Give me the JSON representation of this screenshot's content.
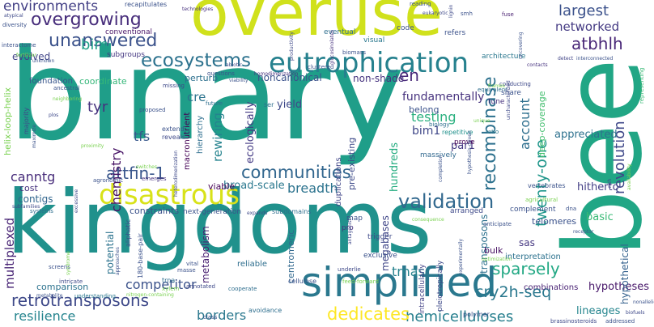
{
  "words": [
    {
      "text": "binary",
      "color": "#1f9e89"
    },
    {
      "text": "overuse",
      "color": "#d0e11c"
    },
    {
      "text": "kingdoms",
      "color": "#20918c"
    },
    {
      "text": "bee",
      "color": "#21a685"
    },
    {
      "text": "simplified",
      "color": "#2a788e"
    },
    {
      "text": "eutrophication",
      "color": "#26818e"
    },
    {
      "text": "disastrous",
      "color": "#d8e219"
    },
    {
      "text": "overgrowing",
      "color": "#472d7b"
    },
    {
      "text": "unanswered",
      "color": "#3b528b"
    },
    {
      "text": "ecosystems",
      "color": "#2c728e"
    },
    {
      "text": "communities",
      "color": "#31668e"
    },
    {
      "text": "validation",
      "color": "#31688e"
    },
    {
      "text": "retrotransposons",
      "color": "#3e4989"
    },
    {
      "text": "recombinase",
      "color": "#2d718e"
    },
    {
      "text": "largest",
      "color": "#3b518b"
    },
    {
      "text": "atbhlh",
      "color": "#482677"
    },
    {
      "text": "networked",
      "color": "#443a83"
    },
    {
      "text": "revolution",
      "color": "#3f4889"
    },
    {
      "text": "cry2h-seq",
      "color": "#2a788e"
    },
    {
      "text": "hemicelluloses",
      "color": "#277f8e"
    },
    {
      "text": "dedicates",
      "color": "#fde725"
    },
    {
      "text": "attfin-1",
      "color": "#39568c"
    },
    {
      "text": "account",
      "color": "#2e6f8e"
    },
    {
      "text": "twenty-one",
      "color": "#1f968b"
    },
    {
      "text": "sparsely",
      "color": "#22a884"
    },
    {
      "text": "environments",
      "color": "#423f85"
    },
    {
      "text": "chemistry",
      "color": "#471365"
    },
    {
      "text": "canntg",
      "color": "#472c7a"
    },
    {
      "text": "multiplexed",
      "color": "#482475"
    },
    {
      "text": "resilience",
      "color": "#25848e"
    },
    {
      "text": "competitor",
      "color": "#3b528b"
    },
    {
      "text": "borders",
      "color": "#2a788e"
    },
    {
      "text": "lineages",
      "color": "#25858e"
    },
    {
      "text": "hypotheses",
      "color": "#48186a"
    },
    {
      "text": "trnas",
      "color": "#26828e"
    },
    {
      "text": "hitherto",
      "color": "#433e85"
    },
    {
      "text": "hypothetical",
      "color": "#34618d"
    },
    {
      "text": "breadth",
      "color": "#2c738e"
    },
    {
      "text": "testing",
      "color": "#2ab07f"
    },
    {
      "text": "hundreds",
      "color": "#26ad81"
    },
    {
      "text": "par1",
      "color": "#443983"
    },
    {
      "text": "bim1",
      "color": "#3f4788"
    },
    {
      "text": "fundamentally",
      "color": "#46327e"
    },
    {
      "text": "appreciated",
      "color": "#2d718e"
    },
    {
      "text": "deep-coverage",
      "color": "#44bf70"
    },
    {
      "text": "evolved",
      "color": "#414487"
    },
    {
      "text": "bim",
      "color": "#1fa088"
    },
    {
      "text": "tyr",
      "color": "#46317e"
    },
    {
      "text": "cre",
      "color": "#2c738e"
    },
    {
      "text": "tfs",
      "color": "#38588c"
    },
    {
      "text": "en",
      "color": "#482878"
    },
    {
      "text": "yield",
      "color": "#3e4989"
    },
    {
      "text": "coordinate",
      "color": "#35b779"
    },
    {
      "text": "perturb",
      "color": "#2d708e"
    },
    {
      "text": "rewiring",
      "color": "#25838e"
    },
    {
      "text": "ecologically",
      "color": "#443b84"
    },
    {
      "text": "broad-scale",
      "color": "#2a788e"
    },
    {
      "text": "viable",
      "color": "#440154"
    },
    {
      "text": "constraints",
      "color": "#3b528b"
    },
    {
      "text": "cost",
      "color": "#46327e"
    },
    {
      "text": "contigs",
      "color": "#31668e"
    },
    {
      "text": "comparison",
      "color": "#2c728e"
    },
    {
      "text": "potential",
      "color": "#2c738e"
    },
    {
      "text": "metabolism",
      "color": "#482071"
    },
    {
      "text": "megabases",
      "color": "#404688"
    },
    {
      "text": "centromeric",
      "color": "#31688e"
    },
    {
      "text": "transposons",
      "color": "#2d718e"
    },
    {
      "text": "basic",
      "color": "#3aba76"
    },
    {
      "text": "sas",
      "color": "#453781"
    },
    {
      "text": "bulk",
      "color": "#471063"
    },
    {
      "text": "telomeres",
      "color": "#3b528b"
    },
    {
      "text": "interpretation",
      "color": "#2c728e"
    },
    {
      "text": "combinations",
      "color": "#482173"
    },
    {
      "text": "pleiotropically",
      "color": "#3e4989"
    },
    {
      "text": "intracellularly",
      "color": "#424186"
    },
    {
      "text": "noncanonical",
      "color": "#3b528b"
    },
    {
      "text": "non-shade",
      "color": "#46337f"
    },
    {
      "text": "duplications",
      "color": "#404588"
    },
    {
      "text": "pre-existing",
      "color": "#3e4a89"
    },
    {
      "text": "belong",
      "color": "#3b528b"
    },
    {
      "text": "macronutrient",
      "color": "#440154"
    },
    {
      "text": "hierarchy",
      "color": "#2e6e8e"
    },
    {
      "text": "helix-loop-helix",
      "color": "#7ad151"
    },
    {
      "text": "foundation",
      "color": "#39568c"
    },
    {
      "text": "subgroups",
      "color": "#453882"
    },
    {
      "text": "conventional",
      "color": "#481467"
    },
    {
      "text": "recapitulates",
      "color": "#3b528b"
    },
    {
      "text": "technologies",
      "color": "#46307e"
    },
    {
      "text": "eventual",
      "color": "#2e6e8e"
    },
    {
      "text": "architecture",
      "color": "#2a778e"
    },
    {
      "text": "visual",
      "color": "#2a788e"
    },
    {
      "text": "code",
      "color": "#3b528b"
    },
    {
      "text": "refers",
      "color": "#3b528b"
    },
    {
      "text": "fuse",
      "color": "#481f70"
    },
    {
      "text": "representing",
      "color": "#3aba76"
    },
    {
      "text": "contacts",
      "color": "#46327e"
    },
    {
      "text": "detect",
      "color": "#414487"
    },
    {
      "text": "interconnected",
      "color": "#3b528b"
    },
    {
      "text": "uncovering",
      "color": "#3b528b"
    },
    {
      "text": "conducting",
      "color": "#3e4989"
    },
    {
      "text": "equivalent",
      "color": "#2e6e8e"
    },
    {
      "text": "share",
      "color": "#3b528b"
    },
    {
      "text": "tune",
      "color": "#46327e"
    },
    {
      "text": "frames",
      "color": "#7ad151"
    },
    {
      "text": "repetitive",
      "color": "#21918c"
    },
    {
      "text": "prove",
      "color": "#440154"
    },
    {
      "text": "massively",
      "color": "#31688e"
    },
    {
      "text": "biology",
      "color": "#2e6e8e"
    },
    {
      "text": "ratio",
      "color": "#2a788e"
    },
    {
      "text": "vertebrates",
      "color": "#3b528b"
    },
    {
      "text": "agricultural",
      "color": "#7ad151"
    },
    {
      "text": "rich",
      "color": "#3e4989"
    },
    {
      "text": "complement",
      "color": "#3b528b"
    },
    {
      "text": "arranged",
      "color": "#3e4989"
    },
    {
      "text": "map",
      "color": "#3b528b"
    },
    {
      "text": "pro",
      "color": "#46327e"
    },
    {
      "text": "anticipate",
      "color": "#3b528b"
    },
    {
      "text": "dna",
      "color": "#3b528b"
    },
    {
      "text": "receptor",
      "color": "#3b528b"
    },
    {
      "text": "trigger",
      "color": "#3e4989"
    },
    {
      "text": "exclusive",
      "color": "#3b528b"
    },
    {
      "text": "underlie",
      "color": "#3e4989"
    },
    {
      "text": "reliable",
      "color": "#2e6e8e"
    },
    {
      "text": "cellulose",
      "color": "#3b528b"
    },
    {
      "text": "feed-forward",
      "color": "#7ad151"
    },
    {
      "text": "cooperate",
      "color": "#2e6e8e"
    },
    {
      "text": "annotated",
      "color": "#3e4989"
    },
    {
      "text": "polymer",
      "color": "#3b528b"
    },
    {
      "text": "avoidance",
      "color": "#2e6e8e"
    },
    {
      "text": "class",
      "color": "#3b528b"
    },
    {
      "text": "addressed",
      "color": "#3b528b"
    },
    {
      "text": "brassinosteroids",
      "color": "#3e4989"
    },
    {
      "text": "understanding",
      "color": "#2a788e"
    },
    {
      "text": "vital",
      "color": "#3b528b"
    },
    {
      "text": "masse",
      "color": "#3b528b"
    },
    {
      "text": "trna",
      "color": "#2e6e8e"
    },
    {
      "text": "xylem",
      "color": "#7ad151"
    },
    {
      "text": "aliphatic",
      "color": "#3e4989"
    },
    {
      "text": "180-base-pair",
      "color": "#3b528b"
    },
    {
      "text": "next-generation",
      "color": "#3b528b"
    },
    {
      "text": "subdomains",
      "color": "#2e6e8e"
    },
    {
      "text": "expands",
      "color": "#3e4989"
    },
    {
      "text": "agronomic",
      "color": "#3b528b"
    },
    {
      "text": "emerges",
      "color": "#46327e"
    },
    {
      "text": "switches",
      "color": "#7ad151"
    },
    {
      "text": "extend",
      "color": "#3b528b"
    },
    {
      "text": "reveals",
      "color": "#3e4989"
    },
    {
      "text": "proposed",
      "color": "#3b528b"
    },
    {
      "text": "future",
      "color": "#2e6e8e"
    },
    {
      "text": "missing",
      "color": "#3e4989"
    },
    {
      "text": "questions",
      "color": "#3b528b"
    },
    {
      "text": "homodimerization",
      "color": "#46327e"
    },
    {
      "text": "clustered",
      "color": "#3b528b"
    },
    {
      "text": "abiotic",
      "color": "#3e4989"
    },
    {
      "text": "viability",
      "color": "#3b528b"
    },
    {
      "text": "ser",
      "color": "#2e6e8e"
    },
    {
      "text": "productivity",
      "color": "#3e4989"
    },
    {
      "text": "biomass",
      "color": "#3b528b"
    },
    {
      "text": "neighboring",
      "color": "#7ad151"
    },
    {
      "text": "ancestral",
      "color": "#3b528b"
    },
    {
      "text": "majority",
      "color": "#3e4989"
    },
    {
      "text": "maximize",
      "color": "#3b528b"
    },
    {
      "text": "subfamilies",
      "color": "#3e4989"
    },
    {
      "text": "systems",
      "color": "#2e6e8e"
    },
    {
      "text": "screens",
      "color": "#3b528b"
    },
    {
      "text": "intricate",
      "color": "#3e4989"
    },
    {
      "text": "metabolite",
      "color": "#3b528b"
    },
    {
      "text": "syndrome",
      "color": "#7ad151"
    },
    {
      "text": "approaches",
      "color": "#3b528b"
    },
    {
      "text": "excessive",
      "color": "#3e4989"
    },
    {
      "text": "proximity",
      "color": "#7ad151"
    },
    {
      "text": "diversity",
      "color": "#3b528b"
    },
    {
      "text": "atypical",
      "color": "#3e4989"
    },
    {
      "text": "interactome",
      "color": "#3b528b"
    },
    {
      "text": "fertilizer",
      "color": "#7ad151"
    },
    {
      "text": "unknown",
      "color": "#3b528b"
    },
    {
      "text": "lignin",
      "color": "#3e4989"
    },
    {
      "text": "reading",
      "color": "#3b528b"
    },
    {
      "text": "eukaryotic",
      "color": "#3e4989"
    },
    {
      "text": "smh",
      "color": "#3b528b"
    },
    {
      "text": "glucosinolates",
      "color": "#46327e"
    },
    {
      "text": "consequence",
      "color": "#7ad151"
    },
    {
      "text": "antagonist",
      "color": "#3e4989"
    },
    {
      "text": "optimization",
      "color": "#7ad151"
    },
    {
      "text": "hypothesis-driven",
      "color": "#3b528b"
    },
    {
      "text": "nitrogen-containing",
      "color": "#7ad151"
    },
    {
      "text": "heterodimerization",
      "color": "#3e4989"
    },
    {
      "text": "completion",
      "color": "#3b528b"
    },
    {
      "text": "biofuels",
      "color": "#3e4989"
    },
    {
      "text": "nonallelic",
      "color": "#3b528b"
    },
    {
      "text": "unique",
      "color": "#7ad151"
    },
    {
      "text": "plos",
      "color": "#3e4989"
    },
    {
      "text": "availability",
      "color": "#7ad151"
    },
    {
      "text": "experimentally",
      "color": "#3b528b"
    },
    {
      "text": "uncharacterized",
      "color": "#3e4989"
    }
  ]
}
